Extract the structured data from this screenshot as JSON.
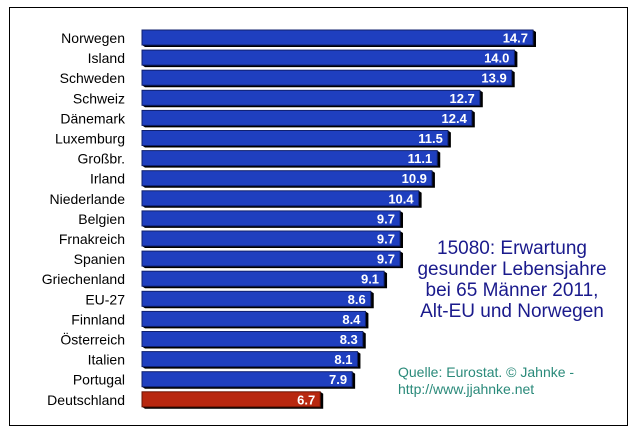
{
  "chart_data": {
    "type": "bar",
    "orientation": "horizontal",
    "categories": [
      "Norwegen",
      "Island",
      "Schweden",
      "Schweiz",
      "Dänemark",
      "Luxemburg",
      "Großbr.",
      "Irland",
      "Niederlande",
      "Belgien",
      "Frnakreich",
      "Spanien",
      "Griechenland",
      "EU-27",
      "Finnland",
      "Österreich",
      "Italien",
      "Portugal",
      "Deutschland"
    ],
    "values": [
      14.7,
      14.0,
      13.9,
      12.7,
      12.4,
      11.5,
      11.1,
      10.9,
      10.4,
      9.7,
      9.7,
      9.7,
      9.1,
      8.6,
      8.4,
      8.3,
      8.1,
      7.9,
      6.7
    ],
    "value_labels": [
      "14.7",
      "14.0",
      "13.9",
      "12.7",
      "12.4",
      "11.5",
      "11.1",
      "10.9",
      "10.4",
      "9.7",
      "9.7",
      "9.7",
      "9.1",
      "8.6",
      "8.4",
      "8.3",
      "8.1",
      "7.9",
      "6.7"
    ],
    "title_lines": [
      "15080: Erwartung",
      "gesunder Lebensjahre",
      "bei 65 Männer 2011,",
      "Alt-EU und Norwegen"
    ],
    "source_lines": [
      "Quelle: Eurostat. © Jahnke -",
      "http://www.jjahnke.net"
    ],
    "highlight_category": "Deutschland",
    "xlim": [
      0,
      14.7
    ],
    "colors": {
      "bar": "#1f3fbf",
      "bar_edge": "#10206e",
      "highlight": "#b82810",
      "highlight_edge": "#6a1405",
      "shadow": "#000000",
      "value_text": "#ffffff",
      "label_text": "#000000",
      "title_text": "#1a1a8c",
      "source_text": "#2a8a7a"
    }
  }
}
